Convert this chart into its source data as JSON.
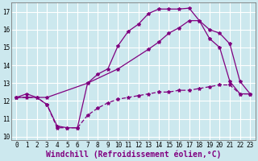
{
  "title": "",
  "xlabel": "Windchill (Refroidissement éolien,°C)",
  "background_color": "#cce8ee",
  "grid_color": "#b0d8e0",
  "line_color": "#800080",
  "line1_x": [
    0,
    1,
    2,
    3,
    4,
    5,
    6,
    7,
    8,
    9,
    10,
    11,
    12,
    13,
    14,
    15,
    16,
    17,
    18,
    19,
    20,
    21,
    22,
    23
  ],
  "line1_y": [
    12.2,
    12.4,
    12.2,
    11.8,
    10.6,
    10.5,
    10.5,
    13.0,
    13.5,
    13.8,
    15.1,
    15.9,
    16.3,
    16.9,
    17.15,
    17.15,
    17.15,
    17.2,
    16.5,
    15.5,
    15.0,
    13.1,
    12.4,
    12.4
  ],
  "line2_x": [
    0,
    3,
    7,
    10,
    13,
    14,
    15,
    16,
    17,
    18,
    19,
    20,
    21,
    22,
    23
  ],
  "line2_y": [
    12.2,
    12.2,
    13.0,
    13.8,
    14.9,
    15.3,
    15.8,
    16.1,
    16.5,
    16.5,
    16.0,
    15.8,
    15.2,
    13.1,
    12.4
  ],
  "line3_x": [
    0,
    1,
    2,
    3,
    4,
    5,
    6,
    7,
    8,
    9,
    10,
    11,
    12,
    13,
    14,
    15,
    16,
    17,
    18,
    19,
    20,
    21,
    22,
    23
  ],
  "line3_y": [
    12.2,
    12.2,
    12.2,
    11.8,
    10.5,
    10.5,
    10.5,
    11.2,
    11.6,
    11.9,
    12.1,
    12.2,
    12.3,
    12.4,
    12.5,
    12.5,
    12.6,
    12.6,
    12.7,
    12.8,
    12.9,
    12.9,
    12.4,
    12.4
  ],
  "xlim": [
    -0.5,
    23.5
  ],
  "ylim": [
    9.8,
    17.5
  ],
  "xticks": [
    0,
    1,
    2,
    3,
    4,
    5,
    6,
    7,
    8,
    9,
    10,
    11,
    12,
    13,
    14,
    15,
    16,
    17,
    18,
    19,
    20,
    21,
    22,
    23
  ],
  "yticks": [
    10,
    11,
    12,
    13,
    14,
    15,
    16,
    17
  ],
  "tick_fontsize": 5.5,
  "xlabel_fontsize": 7.0
}
